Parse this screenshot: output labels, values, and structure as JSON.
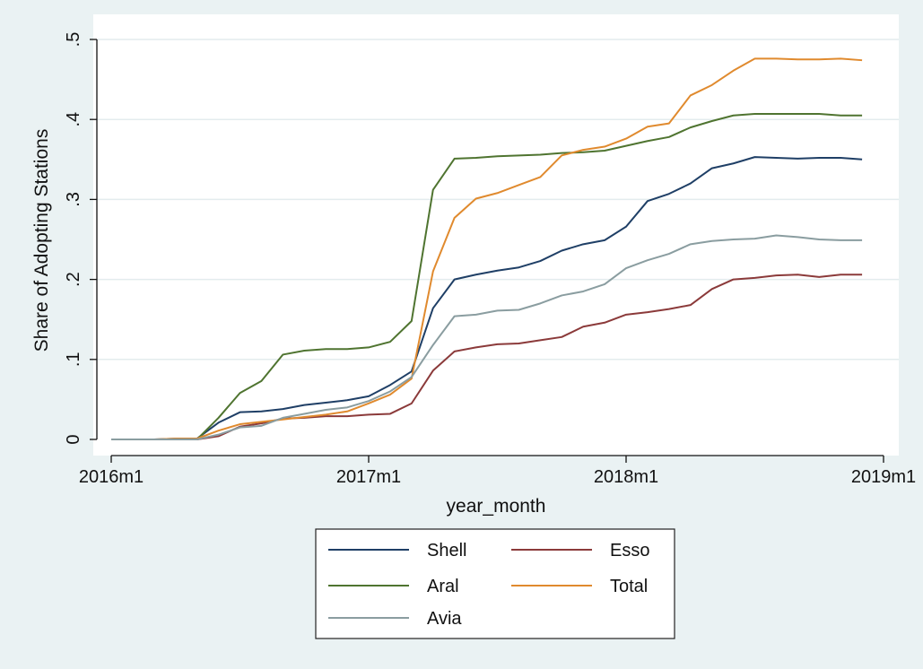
{
  "chart_data": {
    "type": "line",
    "title": "",
    "xlabel": "year_month",
    "ylabel": "Share of Adopting Stations",
    "x_range": [
      0,
      36
    ],
    "ylim": [
      0,
      0.5
    ],
    "x_ticks": [
      {
        "value": 0,
        "label": "2016m1"
      },
      {
        "value": 12,
        "label": "2017m1"
      },
      {
        "value": 24,
        "label": "2018m1"
      },
      {
        "value": 36,
        "label": "2019m1"
      }
    ],
    "y_ticks": [
      {
        "value": 0,
        "label": "0"
      },
      {
        "value": 0.1,
        "label": ".1"
      },
      {
        "value": 0.2,
        "label": ".2"
      },
      {
        "value": 0.3,
        "label": ".3"
      },
      {
        "value": 0.4,
        "label": ".4"
      },
      {
        "value": 0.5,
        "label": ".5"
      }
    ],
    "grid": true,
    "legend_position": "bottom",
    "x": [
      0,
      1,
      2,
      3,
      4,
      5,
      6,
      7,
      8,
      9,
      10,
      11,
      12,
      13,
      14,
      15,
      16,
      17,
      18,
      19,
      20,
      21,
      22,
      23,
      24,
      25,
      26,
      27,
      28,
      29,
      30,
      31,
      32,
      33,
      34,
      35
    ],
    "series": [
      {
        "name": "Shell",
        "color": "#1f3f66",
        "values": [
          0,
          0,
          0,
          0.001,
          0.001,
          0.021,
          0.034,
          0.035,
          0.038,
          0.043,
          0.046,
          0.049,
          0.054,
          0.068,
          0.085,
          0.164,
          0.2,
          0.206,
          0.211,
          0.215,
          0.223,
          0.236,
          0.244,
          0.249,
          0.266,
          0.298,
          0.307,
          0.32,
          0.339,
          0.345,
          0.353,
          0.352,
          0.351,
          0.352,
          0.352,
          0.35
        ]
      },
      {
        "name": "Esso",
        "color": "#8b3a3a",
        "values": [
          0,
          0,
          0,
          0,
          0,
          0.004,
          0.016,
          0.02,
          0.026,
          0.027,
          0.029,
          0.029,
          0.031,
          0.032,
          0.045,
          0.086,
          0.11,
          0.115,
          0.119,
          0.12,
          0.124,
          0.128,
          0.141,
          0.146,
          0.156,
          0.159,
          0.163,
          0.168,
          0.188,
          0.2,
          0.202,
          0.205,
          0.206,
          0.203,
          0.206,
          0.206
        ]
      },
      {
        "name": "Aral",
        "color": "#4f7430",
        "values": [
          0,
          0,
          0,
          0,
          0,
          0.027,
          0.058,
          0.073,
          0.106,
          0.111,
          0.113,
          0.113,
          0.115,
          0.122,
          0.148,
          0.312,
          0.351,
          0.352,
          0.354,
          0.355,
          0.356,
          0.358,
          0.359,
          0.361,
          0.367,
          0.373,
          0.378,
          0.39,
          0.398,
          0.405,
          0.407,
          0.407,
          0.407,
          0.407,
          0.405,
          0.405
        ]
      },
      {
        "name": "Total",
        "color": "#e08a2e",
        "values": [
          0,
          0,
          0,
          0.001,
          0.001,
          0.011,
          0.019,
          0.022,
          0.025,
          0.028,
          0.031,
          0.035,
          0.045,
          0.056,
          0.076,
          0.21,
          0.277,
          0.301,
          0.308,
          0.318,
          0.328,
          0.355,
          0.362,
          0.366,
          0.376,
          0.391,
          0.395,
          0.43,
          0.443,
          0.461,
          0.476,
          0.476,
          0.475,
          0.475,
          0.476,
          0.474
        ]
      },
      {
        "name": "Avia",
        "color": "#8a9da0",
        "values": [
          0,
          0,
          0,
          0,
          0,
          0.006,
          0.015,
          0.017,
          0.027,
          0.032,
          0.037,
          0.04,
          0.048,
          0.06,
          0.078,
          0.118,
          0.154,
          0.156,
          0.161,
          0.162,
          0.17,
          0.18,
          0.185,
          0.194,
          0.214,
          0.224,
          0.232,
          0.244,
          0.248,
          0.25,
          0.251,
          0.255,
          0.253,
          0.25,
          0.249,
          0.249
        ]
      }
    ]
  }
}
